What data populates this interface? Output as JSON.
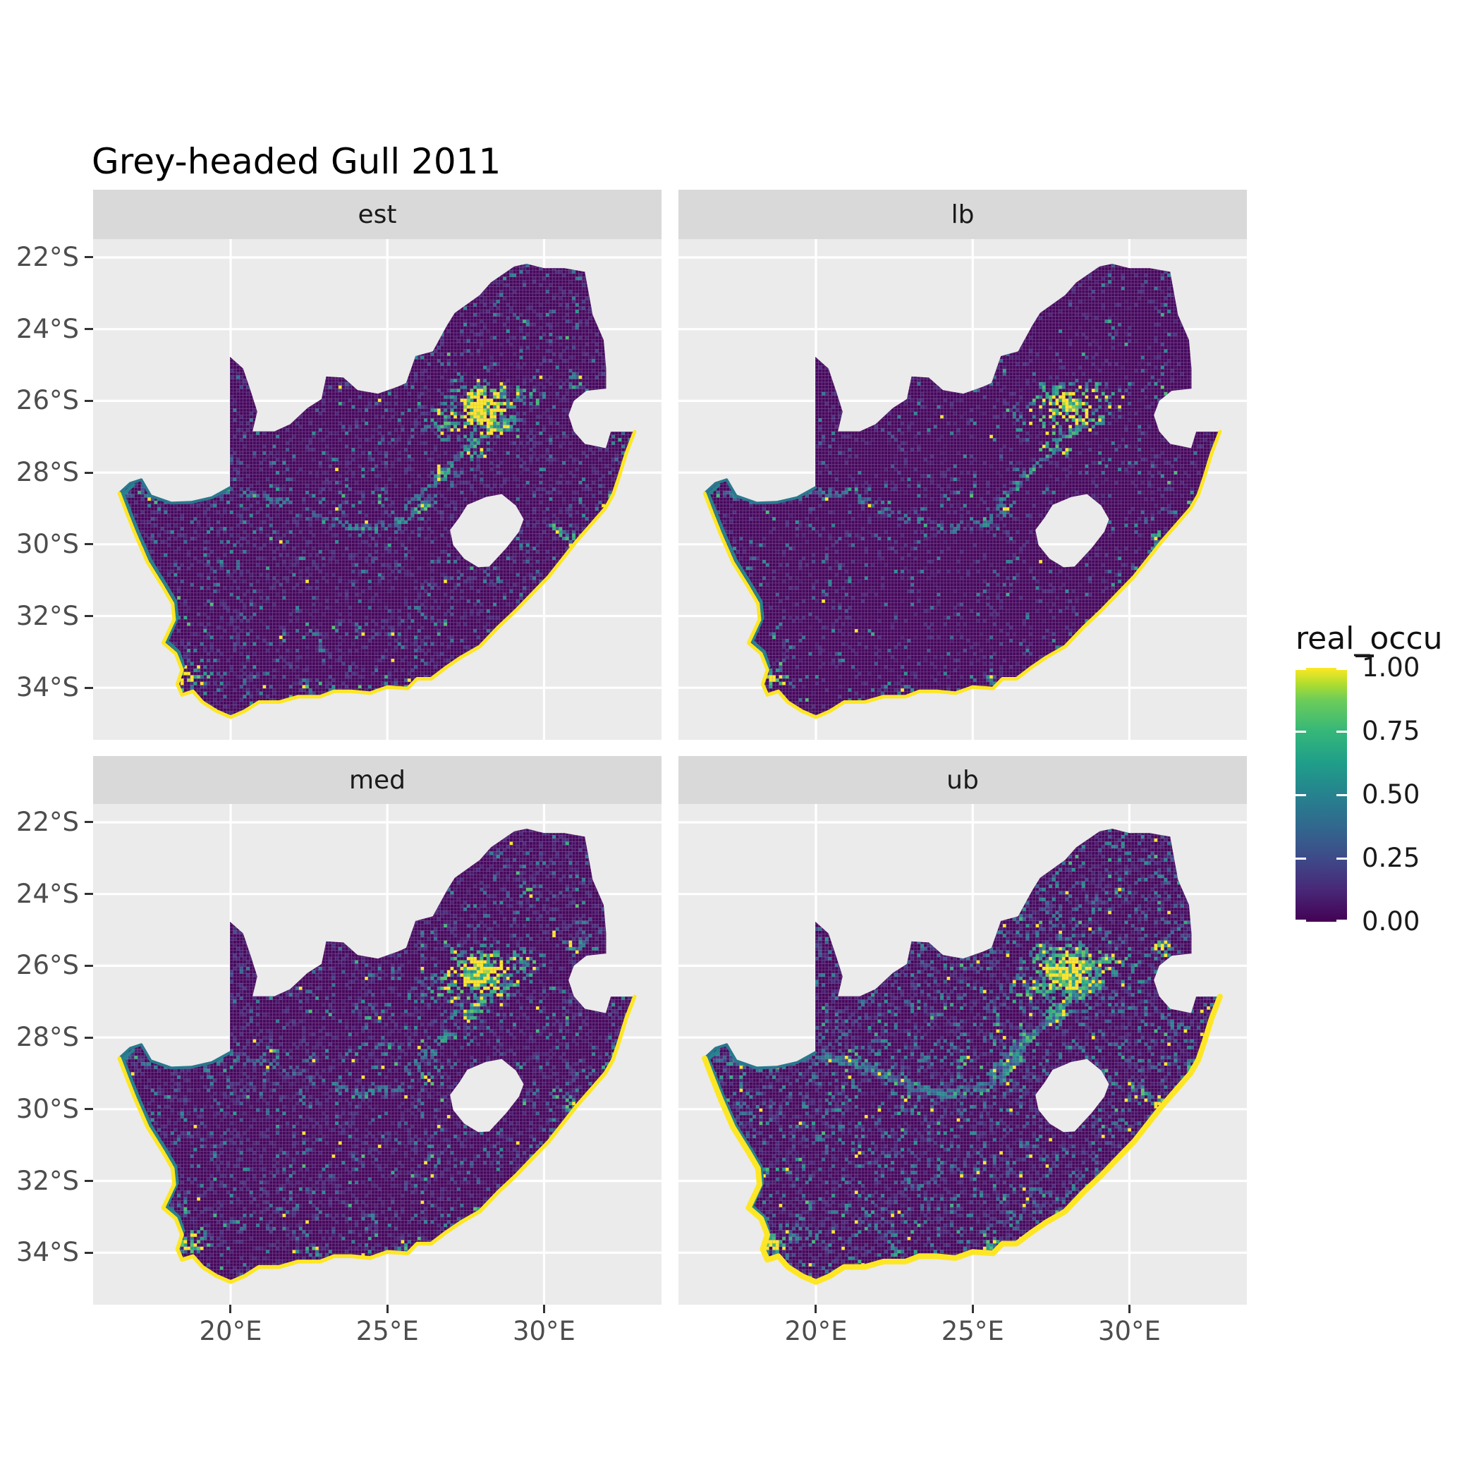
{
  "title": "Grey-headed Gull 2011",
  "facets": [
    {
      "label": "est",
      "seed": 11,
      "density": 1.0,
      "halo": 1.0,
      "coast_w": 5
    },
    {
      "label": "lb",
      "seed": 22,
      "density": 0.55,
      "halo": 0.8,
      "coast_w": 5
    },
    {
      "label": "med",
      "seed": 33,
      "density": 1.2,
      "halo": 1.05,
      "coast_w": 5.5
    },
    {
      "label": "ub",
      "seed": 44,
      "density": 2.4,
      "halo": 1.2,
      "coast_w": 8
    }
  ],
  "axes": {
    "y_labels": [
      "22°S",
      "24°S",
      "26°S",
      "28°S",
      "30°S",
      "32°S",
      "34°S"
    ],
    "y_values": [
      -22,
      -24,
      -26,
      -28,
      -30,
      -32,
      -34
    ],
    "x_labels": [
      "20°E",
      "25°E",
      "30°E"
    ],
    "x_values": [
      20,
      25,
      30
    ]
  },
  "legend": {
    "title": "real_occu",
    "labels": [
      "1.00",
      "0.75",
      "0.50",
      "0.25",
      "0.00"
    ],
    "values": [
      1.0,
      0.75,
      0.5,
      0.25,
      0.0
    ]
  },
  "colors": {
    "panel_bg": "#EBEBEB",
    "strip_bg": "#D9D9D9",
    "grid": "#FFFFFF",
    "map_base": "#46085C",
    "mesh": "rgba(216,200,235,0.30)",
    "coast": "#FDE725",
    "inner_coast": "#26828E",
    "river_border": "#2A788E",
    "axis_text": "#4D4D4D",
    "tick": "#333333",
    "viridis_stops": [
      [
        0.0,
        "#440154"
      ],
      [
        0.125,
        "#482878"
      ],
      [
        0.25,
        "#3E4A89"
      ],
      [
        0.375,
        "#31688E"
      ],
      [
        0.5,
        "#26828E"
      ],
      [
        0.625,
        "#1F9E89"
      ],
      [
        0.75,
        "#35B779"
      ],
      [
        0.875,
        "#6DCD59"
      ],
      [
        0.94,
        "#B4DE2C"
      ],
      [
        1.0,
        "#FDE725"
      ]
    ]
  },
  "chart_data": {
    "type": "heatmap",
    "subtype": "faceted raster occupancy map of South Africa",
    "title": "Grey-headed Gull 2011",
    "facet_labels": [
      "est",
      "lb",
      "med",
      "ub"
    ],
    "xlabel": "",
    "ylabel": "",
    "x_ticks_deg_east": [
      20,
      25,
      30
    ],
    "y_ticks_deg_south": [
      22,
      24,
      26,
      28,
      30,
      32,
      34
    ],
    "value_name": "real_occu",
    "value_range": [
      0.0,
      1.0
    ],
    "legend_ticks": [
      1.0,
      0.75,
      0.5,
      0.25,
      0.0
    ],
    "map": {
      "lon_range": [
        15.613,
        33.747
      ],
      "lat_range_top": -21.489,
      "lat_range_bottom": -35.451,
      "cell_deg_lon": 0.105,
      "cell_deg_lat": 0.0918,
      "speckle_bbox": [
        16.3,
        33.1,
        -35.1,
        -21.9
      ],
      "coast_end_index": 42,
      "outline": [
        [
          32.89,
          -26.86
        ],
        [
          32.62,
          -27.47
        ],
        [
          32.4,
          -28.1
        ],
        [
          32.2,
          -28.62
        ],
        [
          31.95,
          -29.0
        ],
        [
          31.35,
          -29.6
        ],
        [
          31.05,
          -29.9
        ],
        [
          30.6,
          -30.4
        ],
        [
          30.15,
          -30.9
        ],
        [
          29.65,
          -31.35
        ],
        [
          29.1,
          -31.85
        ],
        [
          28.55,
          -32.3
        ],
        [
          27.95,
          -32.85
        ],
        [
          27.35,
          -33.15
        ],
        [
          26.85,
          -33.45
        ],
        [
          26.4,
          -33.75
        ],
        [
          25.95,
          -33.75
        ],
        [
          25.65,
          -34.02
        ],
        [
          25.0,
          -33.98
        ],
        [
          24.45,
          -34.15
        ],
        [
          23.85,
          -34.1
        ],
        [
          23.3,
          -34.1
        ],
        [
          22.85,
          -34.25
        ],
        [
          22.15,
          -34.25
        ],
        [
          21.55,
          -34.4
        ],
        [
          20.9,
          -34.4
        ],
        [
          20.45,
          -34.65
        ],
        [
          20.0,
          -34.82
        ],
        [
          19.55,
          -34.65
        ],
        [
          19.1,
          -34.4
        ],
        [
          18.8,
          -34.1
        ],
        [
          18.45,
          -34.2
        ],
        [
          18.3,
          -33.9
        ],
        [
          18.45,
          -33.5
        ],
        [
          18.25,
          -33.05
        ],
        [
          17.85,
          -32.75
        ],
        [
          18.2,
          -32.1
        ],
        [
          18.15,
          -31.65
        ],
        [
          17.85,
          -31.2
        ],
        [
          17.35,
          -30.5
        ],
        [
          16.95,
          -29.7
        ],
        [
          16.7,
          -29.15
        ],
        [
          16.45,
          -28.58
        ],
        [
          16.8,
          -28.3
        ],
        [
          17.15,
          -28.2
        ],
        [
          17.45,
          -28.65
        ],
        [
          18.1,
          -28.85
        ],
        [
          18.75,
          -28.83
        ],
        [
          19.4,
          -28.7
        ],
        [
          19.98,
          -28.42
        ],
        [
          19.98,
          -24.77
        ],
        [
          20.4,
          -25.1
        ],
        [
          20.65,
          -25.75
        ],
        [
          20.85,
          -26.3
        ],
        [
          20.7,
          -26.85
        ],
        [
          21.4,
          -26.85
        ],
        [
          21.9,
          -26.65
        ],
        [
          22.45,
          -26.2
        ],
        [
          22.9,
          -25.95
        ],
        [
          23.05,
          -25.32
        ],
        [
          23.6,
          -25.35
        ],
        [
          24.05,
          -25.7
        ],
        [
          24.7,
          -25.8
        ],
        [
          25.35,
          -25.6
        ],
        [
          25.6,
          -25.5
        ],
        [
          25.9,
          -24.75
        ],
        [
          26.45,
          -24.62
        ],
        [
          26.9,
          -23.9
        ],
        [
          27.15,
          -23.55
        ],
        [
          27.95,
          -23.05
        ],
        [
          28.3,
          -22.7
        ],
        [
          29.05,
          -22.25
        ],
        [
          29.45,
          -22.18
        ],
        [
          30.0,
          -22.3
        ],
        [
          30.65,
          -22.3
        ],
        [
          31.3,
          -22.4
        ],
        [
          31.55,
          -23.6
        ],
        [
          31.9,
          -24.3
        ],
        [
          31.98,
          -25.1
        ],
        [
          31.98,
          -25.66
        ],
        [
          31.35,
          -25.72
        ],
        [
          30.95,
          -26.0
        ],
        [
          30.78,
          -26.4
        ],
        [
          30.95,
          -26.85
        ],
        [
          31.3,
          -27.2
        ],
        [
          31.97,
          -27.32
        ],
        [
          32.13,
          -26.86
        ]
      ],
      "lesotho_hole": [
        [
          27.0,
          -29.6
        ],
        [
          27.3,
          -29.25
        ],
        [
          27.55,
          -28.9
        ],
        [
          28.15,
          -28.68
        ],
        [
          28.65,
          -28.6
        ],
        [
          29.1,
          -28.92
        ],
        [
          29.35,
          -29.3
        ],
        [
          29.2,
          -29.65
        ],
        [
          28.8,
          -30.1
        ],
        [
          28.25,
          -30.62
        ],
        [
          27.9,
          -30.64
        ],
        [
          27.45,
          -30.4
        ],
        [
          27.1,
          -30.02
        ]
      ],
      "inner_coast": [
        [
          18.5,
          -33.4
        ],
        [
          18.35,
          -33.0
        ],
        [
          17.97,
          -32.7
        ],
        [
          18.3,
          -32.05
        ],
        [
          18.25,
          -31.6
        ],
        [
          17.95,
          -31.15
        ],
        [
          17.45,
          -30.45
        ],
        [
          17.05,
          -29.65
        ],
        [
          16.8,
          -29.1
        ],
        [
          16.57,
          -28.6
        ],
        [
          16.9,
          -28.35
        ]
      ],
      "clusters": [
        [
          28.0,
          -26.15,
          0.6,
          0.45,
          1.7
        ],
        [
          28.0,
          -26.2,
          1.45,
          1.0,
          1.0
        ],
        [
          26.9,
          -26.6,
          0.9,
          0.55,
          0.55
        ],
        [
          27.7,
          -27.3,
          0.7,
          0.5,
          0.5
        ],
        [
          27.25,
          -25.6,
          0.5,
          0.35,
          0.5
        ],
        [
          29.3,
          -25.9,
          0.8,
          0.5,
          0.55
        ],
        [
          29.45,
          -23.9,
          0.35,
          0.3,
          0.35
        ],
        [
          26.2,
          -29.1,
          0.4,
          0.3,
          0.5
        ],
        [
          26.75,
          -27.95,
          0.35,
          0.3,
          0.5
        ],
        [
          24.77,
          -28.7,
          0.35,
          0.28,
          0.45
        ],
        [
          21.25,
          -28.42,
          0.4,
          0.22,
          0.35
        ],
        [
          18.6,
          -33.75,
          0.55,
          0.45,
          0.85
        ],
        [
          19.0,
          -33.6,
          0.6,
          0.5,
          0.4
        ],
        [
          22.6,
          -33.95,
          0.6,
          0.25,
          0.35
        ],
        [
          25.6,
          -33.85,
          0.4,
          0.3,
          0.5
        ],
        [
          27.9,
          -32.95,
          0.35,
          0.3,
          0.45
        ],
        [
          30.9,
          -29.85,
          0.35,
          0.4,
          0.6
        ],
        [
          32.0,
          -28.75,
          0.3,
          0.3,
          0.5
        ],
        [
          30.4,
          -29.6,
          0.35,
          0.3,
          0.45
        ],
        [
          31.0,
          -25.45,
          0.4,
          0.3,
          0.45
        ]
      ],
      "rivers": [
        [
          [
            16.6,
            -28.55
          ],
          [
            18.2,
            -28.75
          ],
          [
            19.9,
            -28.5
          ],
          [
            21.3,
            -28.7
          ],
          [
            22.6,
            -29.2
          ],
          [
            24.1,
            -29.6
          ],
          [
            25.5,
            -29.35
          ],
          [
            26.5,
            -28.6
          ]
        ],
        [
          [
            25.6,
            -29.0
          ],
          [
            26.9,
            -27.95
          ],
          [
            28.1,
            -26.9
          ],
          [
            29.1,
            -26.5
          ]
        ]
      ]
    }
  }
}
